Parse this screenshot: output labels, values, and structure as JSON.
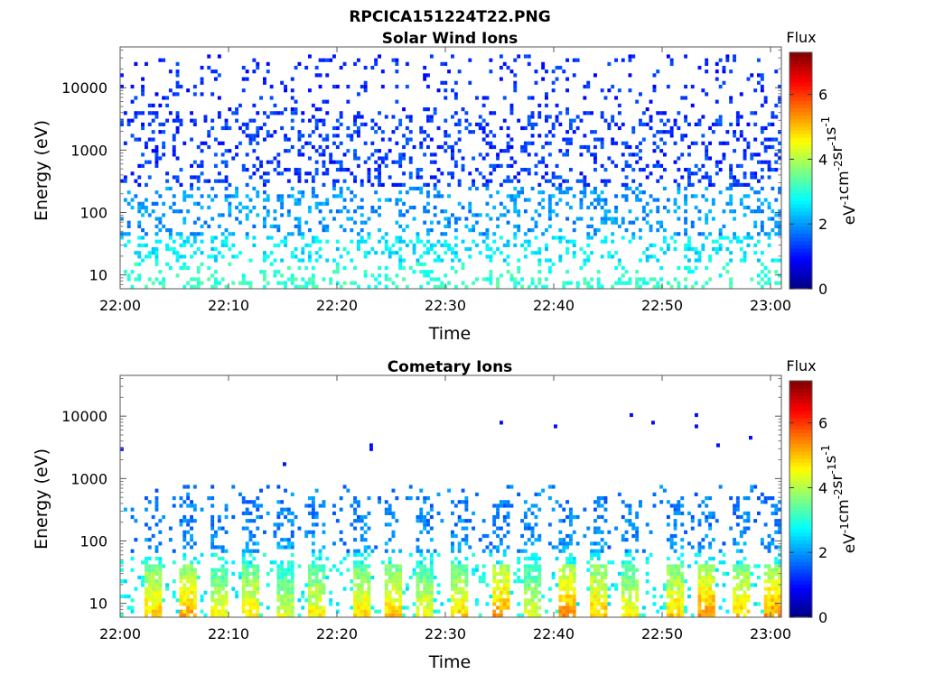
{
  "figure": {
    "title": "RPCICA151224T22.PNG"
  },
  "chart_data": [
    {
      "type": "heatmap",
      "title": "Solar Wind Ions",
      "xlabel": "Time",
      "ylabel": "Energy (eV)",
      "x_ticks": [
        "22:00",
        "22:10",
        "22:20",
        "22:30",
        "22:40",
        "22:50",
        "23:00"
      ],
      "x_range": [
        "22:00",
        "23:01"
      ],
      "y_scale": "log",
      "y_ticks": [
        "10",
        "100",
        "1000",
        "10000"
      ],
      "y_range": [
        6,
        45000
      ],
      "colorbar": {
        "label": "Flux",
        "units": "eV-1cm-2sr-1s-1",
        "ticks": [
          "0",
          "2",
          "4",
          "6"
        ],
        "range": [
          0,
          7.3
        ],
        "colormap": "jet"
      },
      "bands": [
        {
          "emin": 6,
          "emax": 9,
          "density": 0.3,
          "value": 3.1
        },
        {
          "emin": 9,
          "emax": 15,
          "density": 0.15,
          "value": 3.0
        },
        {
          "emin": 15,
          "emax": 40,
          "density": 0.25,
          "value": 2.6
        },
        {
          "emin": 40,
          "emax": 250,
          "density": 0.24,
          "value": 2.0
        },
        {
          "emin": 250,
          "emax": 4000,
          "density": 0.22,
          "value": 1.3
        },
        {
          "emin": 4000,
          "emax": 32000,
          "density": 0.1,
          "value": 1.2
        }
      ],
      "bursts": []
    },
    {
      "type": "heatmap",
      "title": "Cometary Ions",
      "xlabel": "Time",
      "ylabel": "Energy (eV)",
      "x_ticks": [
        "22:00",
        "22:10",
        "22:20",
        "22:30",
        "22:40",
        "22:50",
        "23:00"
      ],
      "x_range": [
        "22:00",
        "23:01"
      ],
      "y_scale": "log",
      "y_ticks": [
        "10",
        "100",
        "1000",
        "10000"
      ],
      "y_range": [
        6,
        45000
      ],
      "colorbar": {
        "label": "Flux",
        "units": "eV-1cm-2sr-1s-1",
        "ticks": [
          "0",
          "2",
          "4",
          "6"
        ],
        "range": [
          0,
          7.3
        ],
        "colormap": "jet"
      },
      "bands": [
        {
          "emin": 6,
          "emax": 60,
          "density": 0.12,
          "value": 2.8
        },
        {
          "emin": 60,
          "emax": 800,
          "density": 0.06,
          "value": 1.8
        }
      ],
      "bursts": [
        {
          "time": "22:03",
          "peak": 5.0
        },
        {
          "time": "22:06",
          "peak": 5.2
        },
        {
          "time": "22:09",
          "peak": 4.6
        },
        {
          "time": "22:12",
          "peak": 4.8
        },
        {
          "time": "22:15",
          "peak": 4.4
        },
        {
          "time": "22:18",
          "peak": 4.7
        },
        {
          "time": "22:22",
          "peak": 4.9
        },
        {
          "time": "22:25",
          "peak": 5.0
        },
        {
          "time": "22:28",
          "peak": 4.6
        },
        {
          "time": "22:31",
          "peak": 4.9
        },
        {
          "time": "22:35",
          "peak": 5.3
        },
        {
          "time": "22:38",
          "peak": 4.5
        },
        {
          "time": "22:41",
          "peak": 5.4
        },
        {
          "time": "22:44",
          "peak": 5.1
        },
        {
          "time": "22:47",
          "peak": 4.7
        },
        {
          "time": "22:51",
          "peak": 5.0
        },
        {
          "time": "22:54",
          "peak": 5.4
        },
        {
          "time": "22:57",
          "peak": 5.0
        },
        {
          "time": "23:00",
          "peak": 5.3
        }
      ],
      "isolated_points": [
        {
          "time": "22:00",
          "energy": 2800
        },
        {
          "time": "22:15",
          "energy": 1600
        },
        {
          "time": "22:23",
          "energy": 3300
        },
        {
          "time": "22:23",
          "energy": 2900
        },
        {
          "time": "22:35",
          "energy": 7800
        },
        {
          "time": "22:40",
          "energy": 6600
        },
        {
          "time": "22:47",
          "energy": 10500
        },
        {
          "time": "22:49",
          "energy": 7600
        },
        {
          "time": "22:53",
          "energy": 10500
        },
        {
          "time": "22:53",
          "energy": 6600
        },
        {
          "time": "22:55",
          "energy": 3600
        },
        {
          "time": "22:58",
          "energy": 4800
        }
      ]
    }
  ]
}
